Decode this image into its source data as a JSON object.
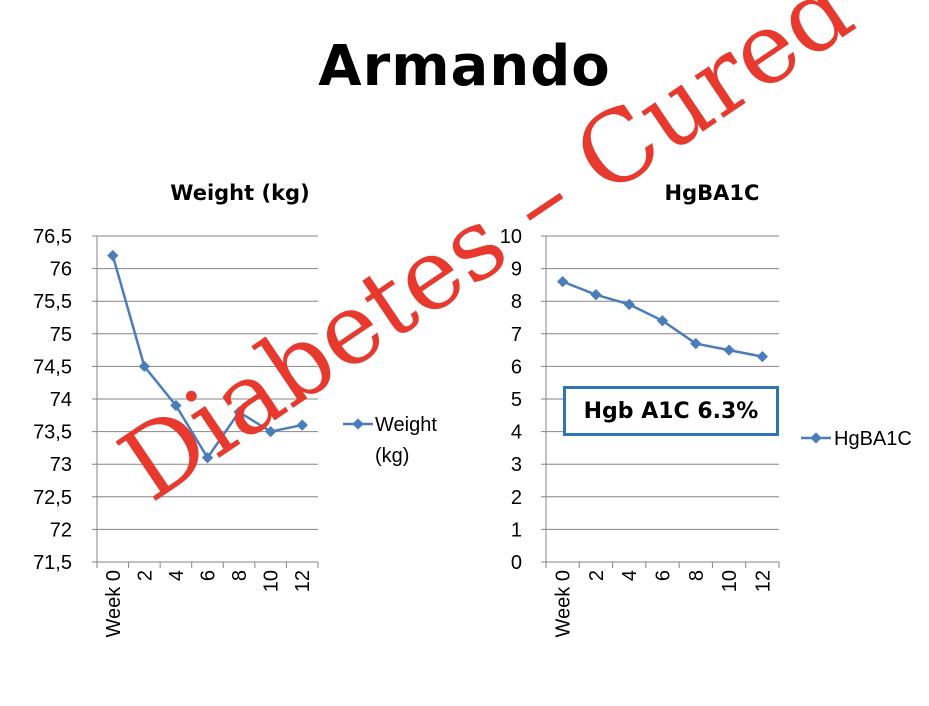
{
  "title": "Armando",
  "stamp_text": "Diabetes – Cured",
  "callout_text": "Hgb A1C 6.3%",
  "colors": {
    "series": "#4a7ebb",
    "stamp": "#e8392e",
    "callout_border": "#2e75b6",
    "grid": "#868686"
  },
  "chart_data": [
    {
      "type": "line",
      "title": "Weight (kg)",
      "categories": [
        "Week 0",
        "2",
        "4",
        "6",
        "8",
        "10",
        "12"
      ],
      "series": [
        {
          "name": "Weight (kg)",
          "values": [
            76.2,
            74.5,
            73.9,
            73.1,
            73.8,
            73.5,
            73.6
          ]
        }
      ],
      "yticks": [
        "71,5",
        "72",
        "72,5",
        "73",
        "73,5",
        "74",
        "74,5",
        "75",
        "75,5",
        "76",
        "76,5"
      ],
      "ylim": [
        71.5,
        76.5
      ],
      "grid": true,
      "legend": "right"
    },
    {
      "type": "line",
      "title": "HgBA1C",
      "categories": [
        "Week 0",
        "2",
        "4",
        "6",
        "8",
        "10",
        "12"
      ],
      "series": [
        {
          "name": "HgBA1C",
          "values": [
            8.6,
            8.2,
            7.9,
            7.4,
            6.7,
            6.5,
            6.3
          ]
        }
      ],
      "yticks": [
        "0",
        "1",
        "2",
        "3",
        "4",
        "5",
        "6",
        "7",
        "8",
        "9",
        "10"
      ],
      "ylim": [
        0,
        10
      ],
      "grid": true,
      "legend": "right"
    }
  ]
}
